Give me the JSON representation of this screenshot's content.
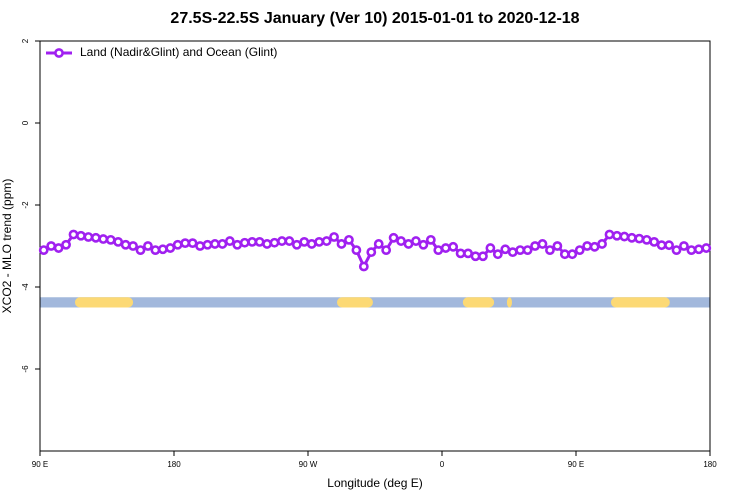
{
  "chart_data": {
    "type": "line",
    "title": "27.5S-22.5S January (Ver 10)   2015-01-01 to 2020-12-18",
    "x_label": "Longitude (deg E)",
    "y_label": "XCO2 - MLO trend (ppm)",
    "xlim": [
      90,
      540
    ],
    "ylim": [
      -8,
      2
    ],
    "xticks": [
      {
        "value": 90,
        "label": "90 E"
      },
      180,
      {
        "value": 270,
        "label": "90 W"
      },
      {
        "value": 360,
        "label": "0"
      },
      {
        "value": 450,
        "label": "90 E"
      },
      {
        "value": 540,
        "label": "180"
      }
    ],
    "yticks": [
      2,
      0,
      -2,
      -4,
      -6
    ],
    "legend": "top-left",
    "x": [
      92.5,
      97.5,
      102.5,
      107.5,
      112.5,
      117.5,
      122.5,
      127.5,
      132.5,
      137.5,
      142.5,
      147.5,
      152.5,
      157.5,
      162.5,
      167.5,
      172.5,
      177.5,
      182.5,
      187.5,
      192.5,
      197.5,
      202.5,
      207.5,
      212.5,
      217.5,
      222.5,
      227.5,
      232.5,
      237.5,
      242.5,
      247.5,
      252.5,
      257.5,
      262.5,
      267.5,
      272.5,
      277.5,
      282.5,
      287.5,
      292.5,
      297.5,
      302.5,
      307.5,
      312.5,
      317.5,
      322.5,
      327.5,
      332.5,
      337.5,
      342.5,
      347.5,
      352.5,
      357.5,
      362.5,
      367.5,
      372.5,
      377.5,
      382.5,
      387.5,
      392.5,
      397.5,
      402.5,
      407.5,
      412.5,
      417.5,
      422.5,
      427.5,
      432.5,
      437.5,
      442.5,
      447.5,
      452.5,
      457.5,
      462.5,
      467.5,
      472.5,
      477.5,
      482.5,
      487.5,
      492.5,
      497.5,
      502.5,
      507.5,
      512.5,
      517.5,
      522.5,
      527.5,
      532.5,
      537.5
    ],
    "series": [
      {
        "name": "Land (Nadir&Glint) and Ocean (Glint)",
        "color": "#a020f0",
        "values": [
          -3.1,
          -3.0,
          -3.05,
          -2.97,
          -2.72,
          -2.75,
          -2.78,
          -2.8,
          -2.83,
          -2.85,
          -2.9,
          -2.97,
          -3.0,
          -3.1,
          -3.0,
          -3.1,
          -3.08,
          -3.05,
          -2.97,
          -2.93,
          -2.93,
          -3.0,
          -2.97,
          -2.95,
          -2.95,
          -2.88,
          -2.97,
          -2.92,
          -2.9,
          -2.9,
          -2.95,
          -2.92,
          -2.88,
          -2.88,
          -2.97,
          -2.9,
          -2.95,
          -2.9,
          -2.88,
          -2.78,
          -2.95,
          -2.85,
          -3.1,
          -3.5,
          -3.15,
          -2.95,
          -3.1,
          -2.8,
          -2.88,
          -2.95,
          -2.88,
          -2.97,
          -2.85,
          -3.1,
          -3.05,
          -3.02,
          -3.18,
          -3.18,
          -3.25,
          -3.25,
          -3.05,
          -3.2,
          -3.08,
          -3.15,
          -3.1,
          -3.1,
          -3.0,
          -2.95,
          -3.1,
          -3.0,
          -3.2,
          -3.2,
          -3.1,
          -3.0,
          -3.02,
          -2.95,
          -2.72,
          -2.75,
          -2.77,
          -2.8,
          -2.82,
          -2.85,
          -2.9,
          -2.98,
          -2.98,
          -3.1,
          -3.0,
          -3.1,
          -3.08,
          -3.05
        ]
      }
    ],
    "land_mask": {
      "ylim": [
        -4.5,
        -4.25
      ],
      "ocean_color": "#a2b8dc",
      "land_color": "#fcd975",
      "land": [
        [
          113.5,
          152.5
        ],
        [
          289.5,
          313.6
        ],
        [
          374,
          395
        ],
        [
          403.6,
          407
        ],
        [
          473.5,
          513
        ]
      ]
    }
  }
}
